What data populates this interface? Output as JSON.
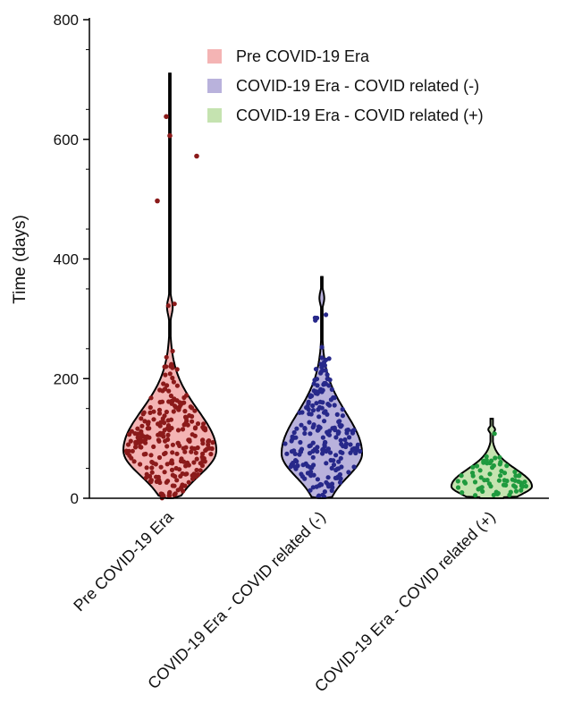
{
  "chart_data": {
    "type": "violin",
    "xlabel": "",
    "ylabel": "Time (days)",
    "ylim": [
      0,
      800
    ],
    "yticks": [
      0,
      200,
      400,
      600,
      800
    ],
    "grid": false,
    "legend_position": "top-right",
    "categories": [
      "Pre COVID-19 Era",
      "COVID-19 Era - COVID related (-)",
      "COVID-19 Era - COVID related (+)"
    ],
    "series": [
      {
        "name": "Pre COVID-19 Era",
        "fill_color": "#f4b4b4",
        "point_color": "#8b1a1a",
        "range": [
          0,
          710
        ],
        "max_width_at": 80,
        "outliers": [
          497,
          572,
          606,
          638
        ],
        "n_points": 260
      },
      {
        "name": "COVID-19 Era - COVID related (-)",
        "fill_color": "#b9b2dc",
        "point_color": "#27288a",
        "range": [
          0,
          370
        ],
        "max_width_at": 75,
        "outliers": [],
        "n_points": 230
      },
      {
        "name": "COVID-19 Era - COVID related (+)",
        "fill_color": "#c5e3b0",
        "point_color": "#1f9a3e",
        "range": [
          0,
          133
        ],
        "max_width_at": 20,
        "outliers": [],
        "n_points": 70
      }
    ]
  }
}
